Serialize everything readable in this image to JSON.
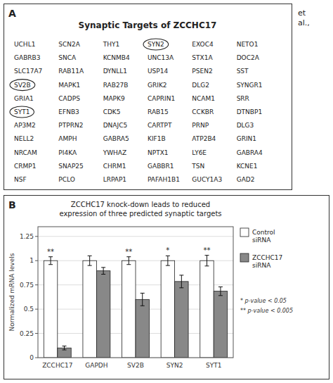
{
  "chart_data": [
    {
      "type": "table",
      "title": "Synaptic Targets of ZCCHC17",
      "annotations": [
        "A",
        "et\nal.,"
      ],
      "cells": [
        [
          "UCHL1",
          "SCN2A",
          "THY1",
          {
            "label": "SYN2",
            "marker": "circle"
          },
          "EXOC4",
          "NETO1"
        ],
        [
          "GABRB3",
          "SNCA",
          "KCNMB4",
          "UNC13A",
          "STX1A",
          "DOC2A"
        ],
        [
          "SLC17A7",
          "RAB11A",
          "DYNLL1",
          "USP14",
          "PSEN2",
          "SST"
        ],
        [
          {
            "label": "SV2B",
            "marker": "circle"
          },
          "MAPK1",
          "RAB27B",
          "GRIK2",
          "DLG2",
          "SYNGR1"
        ],
        [
          "GRIA1",
          "CADPS",
          "MAPK9",
          "CAPRIN1",
          "NCAM1",
          "SRR"
        ],
        [
          {
            "label": "SYT1",
            "marker": "circle"
          },
          "EFNB3",
          "CDK5",
          "RAB15",
          "CCKBR",
          "DTNBP1"
        ],
        [
          "AP3M2",
          "PTPRN2",
          "DNAJC5",
          "CARTPT",
          "PRNP",
          "DLG3"
        ],
        [
          "NELL2",
          "AMPH",
          "GABRA5",
          "KIF1B",
          "ATP2B4",
          "GRIN1"
        ],
        [
          "NRCAM",
          "PI4KA",
          "YWHAZ",
          "NPTX1",
          "LY6E",
          "GABRA4"
        ],
        [
          "CRMP1",
          "SNAP25",
          "CHRM1",
          "GABBR1",
          "TSN",
          "KCNE1"
        ],
        [
          "NSF",
          "PCLO",
          "LRPAP1",
          "PAFAH1B1",
          "GUCY1A3",
          "GAD2"
        ]
      ]
    },
    {
      "type": "bar",
      "title": "ZCCHC17 knock-down leads to reduced",
      "subtitle": "expression of three predicted synaptic targets",
      "annotations": [
        "B",
        "* p-value < 0.05",
        "** p-value < 0.005"
      ],
      "categories": [
        "ZCCHC17",
        "GAPDH",
        "SV2B",
        "SYN2",
        "SYT1"
      ],
      "series": [
        {
          "name": "Control\nsiRNA",
          "color": "#FFFFFF",
          "values": [
            1.0,
            1.0,
            1.0,
            1.0,
            1.0
          ],
          "errors": [
            0.04,
            0.05,
            0.04,
            0.05,
            0.055
          ],
          "annotations": [
            "**",
            null,
            "**",
            "*",
            "**"
          ]
        },
        {
          "name": "ZCCHC17\nsiRNA",
          "color": "#888888",
          "values": [
            0.1,
            0.895,
            0.6,
            0.785,
            0.685
          ],
          "errors": [
            0.02,
            0.035,
            0.065,
            0.065,
            0.045
          ]
        }
      ],
      "ylabel": "Normalized mRNA levels",
      "ylim": [
        0,
        1.35
      ],
      "yticks": [
        0,
        0.25,
        0.5,
        0.75,
        1,
        1.25
      ],
      "grid": true,
      "legend": "right"
    }
  ]
}
